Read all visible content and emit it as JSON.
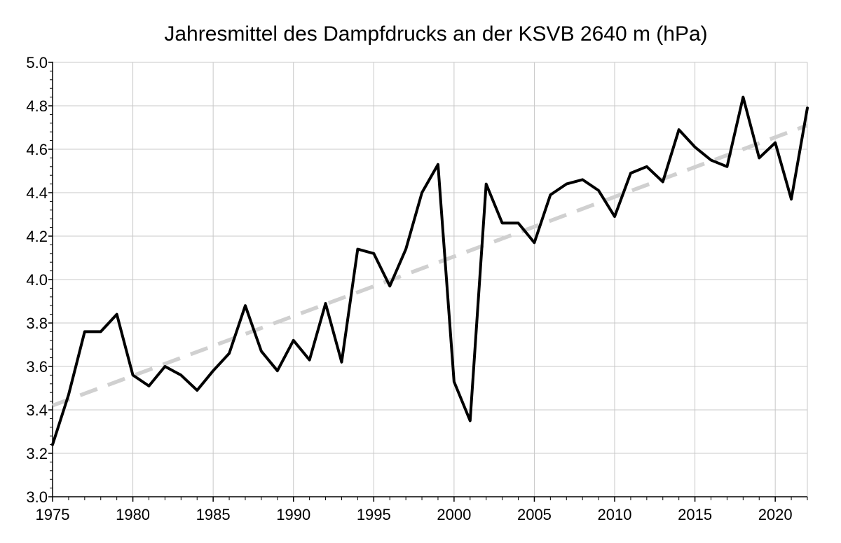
{
  "chart_data": {
    "type": "line",
    "title": "Jahresmittel des Dampfdrucks an der KSVB 2640 m (hPa)",
    "xlabel": "",
    "ylabel": "",
    "xlim": [
      1975,
      2022
    ],
    "ylim": [
      3.0,
      5.0
    ],
    "x_ticks": [
      1975,
      1980,
      1985,
      1990,
      1995,
      2000,
      2005,
      2010,
      2015,
      2020
    ],
    "y_ticks": [
      "3.0",
      "3.2",
      "3.4",
      "3.6",
      "3.8",
      "4.0",
      "4.2",
      "4.4",
      "4.6",
      "4.8",
      "5.0"
    ],
    "grid": true,
    "legend": "none",
    "series": [
      {
        "style": "solid",
        "color": "#000000",
        "x": [
          1975,
          1976,
          1977,
          1978,
          1979,
          1980,
          1981,
          1982,
          1983,
          1984,
          1985,
          1986,
          1987,
          1988,
          1989,
          1990,
          1991,
          1992,
          1993,
          1994,
          1995,
          1996,
          1997,
          1998,
          1999,
          2000,
          2001,
          2002,
          2003,
          2004,
          2005,
          2006,
          2007,
          2008,
          2009,
          2010,
          2011,
          2012,
          2013,
          2014,
          2015,
          2016,
          2017,
          2018,
          2019,
          2020,
          2021,
          2022
        ],
        "y": [
          3.24,
          3.47,
          3.76,
          3.76,
          3.84,
          3.56,
          3.51,
          3.6,
          3.56,
          3.49,
          3.58,
          3.66,
          3.88,
          3.67,
          3.58,
          3.72,
          3.63,
          3.89,
          3.62,
          4.14,
          4.12,
          3.97,
          4.14,
          4.4,
          4.53,
          3.53,
          3.35,
          4.44,
          4.26,
          4.26,
          4.17,
          4.39,
          4.44,
          4.46,
          4.41,
          4.29,
          4.49,
          4.52,
          4.45,
          4.69,
          4.61,
          4.55,
          4.52,
          4.84,
          4.56,
          4.63,
          4.37,
          4.79
        ]
      },
      {
        "style": "dashed",
        "color": "#d0d0d0",
        "x": [
          1975,
          2022
        ],
        "y": [
          3.42,
          4.71
        ]
      }
    ]
  }
}
